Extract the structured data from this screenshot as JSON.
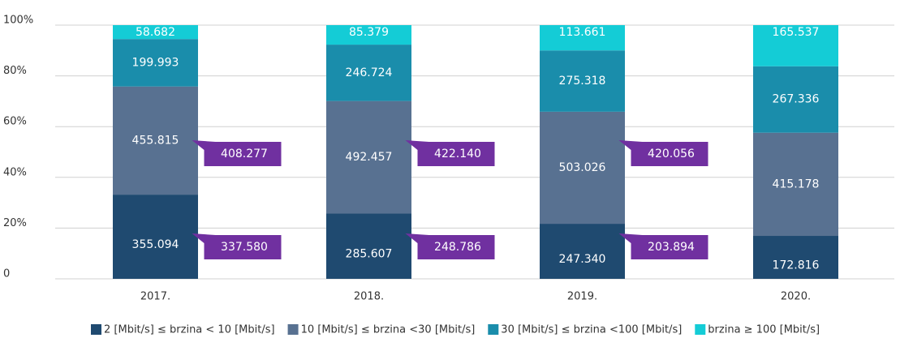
{
  "chart_data": {
    "type": "bar",
    "stacked_percent": true,
    "categories": [
      "2017.",
      "2018.",
      "2019.",
      "2020."
    ],
    "series": [
      {
        "name": "2 [Mbit/s] ≤ brzina < 10 [Mbit/s]",
        "color": "#1f4a70",
        "values": [
          355094,
          285607,
          247340,
          172816
        ],
        "value_labels": [
          "355.094",
          "285.607",
          "247.340",
          "172.816"
        ]
      },
      {
        "name": "10 [Mbit/s] ≤ brzina <30 [Mbit/s]",
        "color": "#587191",
        "values": [
          455815,
          492457,
          503026,
          415178
        ],
        "value_labels": [
          "455.815",
          "492.457",
          "503.026",
          "415.178"
        ]
      },
      {
        "name": "30 [Mbit/s] ≤ brzina <100 [Mbit/s]",
        "color": "#1a8dab",
        "values": [
          199993,
          246724,
          275318,
          267336
        ],
        "value_labels": [
          "199.993",
          "246.724",
          "275.318",
          "267.336"
        ]
      },
      {
        "name": "brzina ≥ 100 [Mbit/s]",
        "color": "#14ccd6",
        "values": [
          58682,
          85379,
          113661,
          165537
        ],
        "value_labels": [
          "58.682",
          "85.379",
          "113.661",
          "165.537"
        ]
      }
    ],
    "annotations": [
      {
        "color": "#7030a0",
        "values": [
          337580,
          248786,
          203894,
          null
        ],
        "value_labels": [
          "337.580",
          "248.786",
          "203.894",
          null
        ]
      },
      {
        "color": "#7030a0",
        "values": [
          408277,
          422140,
          420056,
          null
        ],
        "value_labels": [
          "408.277",
          "422.140",
          "420.056",
          null
        ]
      }
    ],
    "ylim": [
      0,
      100
    ],
    "yticks": [
      {
        "value": 0,
        "label": "0"
      },
      {
        "value": 20,
        "label": "20%"
      },
      {
        "value": 40,
        "label": "40%"
      },
      {
        "value": 60,
        "label": "60%"
      },
      {
        "value": 80,
        "label": "80%"
      },
      {
        "value": 100,
        "label": "100%"
      }
    ],
    "grid": true,
    "legend": "bottom"
  }
}
